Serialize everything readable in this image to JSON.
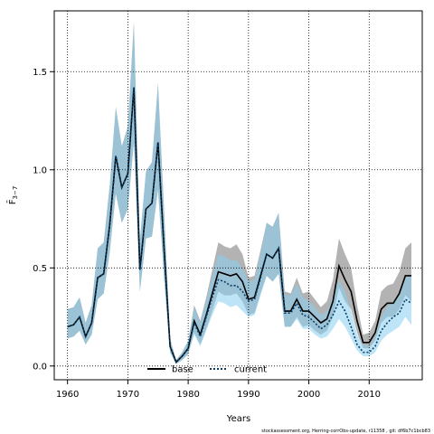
{
  "chart_data": {
    "type": "line",
    "title": "",
    "xlabel": "Years",
    "ylabel": "F̄",
    "ylabel_sub": "3−7",
    "xlim": [
      1957.8,
      2018.8
    ],
    "ylim": [
      -0.07,
      1.81
    ],
    "xticks": [
      1960,
      1970,
      1980,
      1990,
      2000,
      2010
    ],
    "yticks": [
      0.0,
      0.5,
      1.0,
      1.5
    ],
    "ytick_labels": [
      "0.0",
      "0.5",
      "1.0",
      "1.5"
    ],
    "grid": true,
    "legend_position": "bottom-left",
    "x": [
      1960,
      1961,
      1962,
      1963,
      1964,
      1965,
      1966,
      1967,
      1968,
      1969,
      1970,
      1971,
      1972,
      1973,
      1974,
      1975,
      1976,
      1977,
      1978,
      1979,
      1980,
      1981,
      1982,
      1983,
      1984,
      1985,
      1986,
      1987,
      1988,
      1989,
      1990,
      1991,
      1992,
      1993,
      1994,
      1995,
      1996,
      1997,
      1998,
      1999,
      2000,
      2001,
      2002,
      2003,
      2004,
      2005,
      2006,
      2007,
      2008,
      2009,
      2010,
      2011,
      2012,
      2013,
      2014,
      2015,
      2016,
      2017
    ],
    "series": [
      {
        "name": "base",
        "color": "#000000",
        "band_color": "#808080",
        "values": [
          0.2,
          0.21,
          0.25,
          0.15,
          0.22,
          0.45,
          0.47,
          0.72,
          1.07,
          0.91,
          0.98,
          1.42,
          0.49,
          0.8,
          0.83,
          1.14,
          0.6,
          0.1,
          0.02,
          0.05,
          0.09,
          0.23,
          0.16,
          0.26,
          0.37,
          0.48,
          0.47,
          0.46,
          0.47,
          0.43,
          0.34,
          0.35,
          0.46,
          0.57,
          0.55,
          0.6,
          0.28,
          0.28,
          0.34,
          0.28,
          0.28,
          0.25,
          0.22,
          0.24,
          0.33,
          0.51,
          0.44,
          0.38,
          0.23,
          0.12,
          0.12,
          0.17,
          0.29,
          0.32,
          0.32,
          0.37,
          0.46,
          0.46
        ],
        "lower": [
          0.14,
          0.15,
          0.18,
          0.11,
          0.16,
          0.34,
          0.37,
          0.58,
          0.88,
          0.73,
          0.8,
          1.14,
          0.38,
          0.65,
          0.66,
          0.9,
          0.45,
          0.07,
          0.01,
          0.03,
          0.06,
          0.17,
          0.11,
          0.19,
          0.28,
          0.38,
          0.36,
          0.36,
          0.37,
          0.33,
          0.26,
          0.27,
          0.37,
          0.46,
          0.43,
          0.47,
          0.2,
          0.2,
          0.25,
          0.2,
          0.21,
          0.18,
          0.16,
          0.18,
          0.25,
          0.4,
          0.33,
          0.29,
          0.17,
          0.09,
          0.09,
          0.13,
          0.22,
          0.25,
          0.25,
          0.29,
          0.36,
          0.33
        ],
        "upper": [
          0.29,
          0.3,
          0.35,
          0.22,
          0.31,
          0.6,
          0.63,
          0.92,
          1.32,
          1.12,
          1.22,
          1.75,
          0.64,
          0.99,
          1.04,
          1.44,
          0.8,
          0.14,
          0.03,
          0.07,
          0.13,
          0.31,
          0.23,
          0.35,
          0.49,
          0.63,
          0.61,
          0.6,
          0.62,
          0.57,
          0.45,
          0.46,
          0.59,
          0.73,
          0.71,
          0.78,
          0.38,
          0.37,
          0.45,
          0.37,
          0.38,
          0.34,
          0.3,
          0.33,
          0.44,
          0.65,
          0.57,
          0.5,
          0.31,
          0.16,
          0.17,
          0.23,
          0.38,
          0.41,
          0.42,
          0.48,
          0.6,
          0.63
        ]
      },
      {
        "name": "current",
        "color": "#0a3d66",
        "band_color": "#87cdf0",
        "values": [
          0.2,
          0.21,
          0.25,
          0.15,
          0.22,
          0.45,
          0.47,
          0.72,
          1.07,
          0.91,
          0.98,
          1.42,
          0.49,
          0.8,
          0.83,
          1.14,
          0.6,
          0.1,
          0.02,
          0.05,
          0.09,
          0.22,
          0.15,
          0.25,
          0.35,
          0.44,
          0.43,
          0.41,
          0.41,
          0.38,
          0.33,
          0.34,
          0.45,
          0.57,
          0.55,
          0.6,
          0.27,
          0.27,
          0.32,
          0.26,
          0.25,
          0.22,
          0.19,
          0.21,
          0.26,
          0.33,
          0.28,
          0.2,
          0.11,
          0.07,
          0.07,
          0.1,
          0.18,
          0.22,
          0.25,
          0.27,
          0.34,
          0.32
        ],
        "lower": [
          0.14,
          0.15,
          0.18,
          0.11,
          0.16,
          0.34,
          0.37,
          0.58,
          0.88,
          0.73,
          0.8,
          1.14,
          0.38,
          0.65,
          0.66,
          0.9,
          0.45,
          0.07,
          0.01,
          0.03,
          0.06,
          0.16,
          0.1,
          0.18,
          0.26,
          0.33,
          0.32,
          0.3,
          0.31,
          0.28,
          0.25,
          0.26,
          0.36,
          0.46,
          0.43,
          0.47,
          0.2,
          0.2,
          0.24,
          0.19,
          0.19,
          0.16,
          0.14,
          0.15,
          0.19,
          0.24,
          0.2,
          0.14,
          0.08,
          0.05,
          0.05,
          0.07,
          0.13,
          0.16,
          0.18,
          0.2,
          0.25,
          0.21
        ],
        "upper": [
          0.29,
          0.3,
          0.35,
          0.22,
          0.31,
          0.6,
          0.63,
          0.92,
          1.32,
          1.12,
          1.22,
          1.75,
          0.64,
          0.99,
          1.04,
          1.44,
          0.8,
          0.14,
          0.03,
          0.07,
          0.13,
          0.3,
          0.22,
          0.34,
          0.46,
          0.57,
          0.56,
          0.54,
          0.54,
          0.5,
          0.43,
          0.44,
          0.57,
          0.73,
          0.71,
          0.78,
          0.36,
          0.36,
          0.42,
          0.35,
          0.33,
          0.3,
          0.26,
          0.28,
          0.35,
          0.44,
          0.38,
          0.28,
          0.16,
          0.11,
          0.1,
          0.15,
          0.25,
          0.3,
          0.33,
          0.36,
          0.45,
          0.46
        ]
      }
    ]
  },
  "footer": {
    "caption": "stockassessment.org, Herring-corrObs-update, r11358 , git: df6b7c1bcb83"
  }
}
